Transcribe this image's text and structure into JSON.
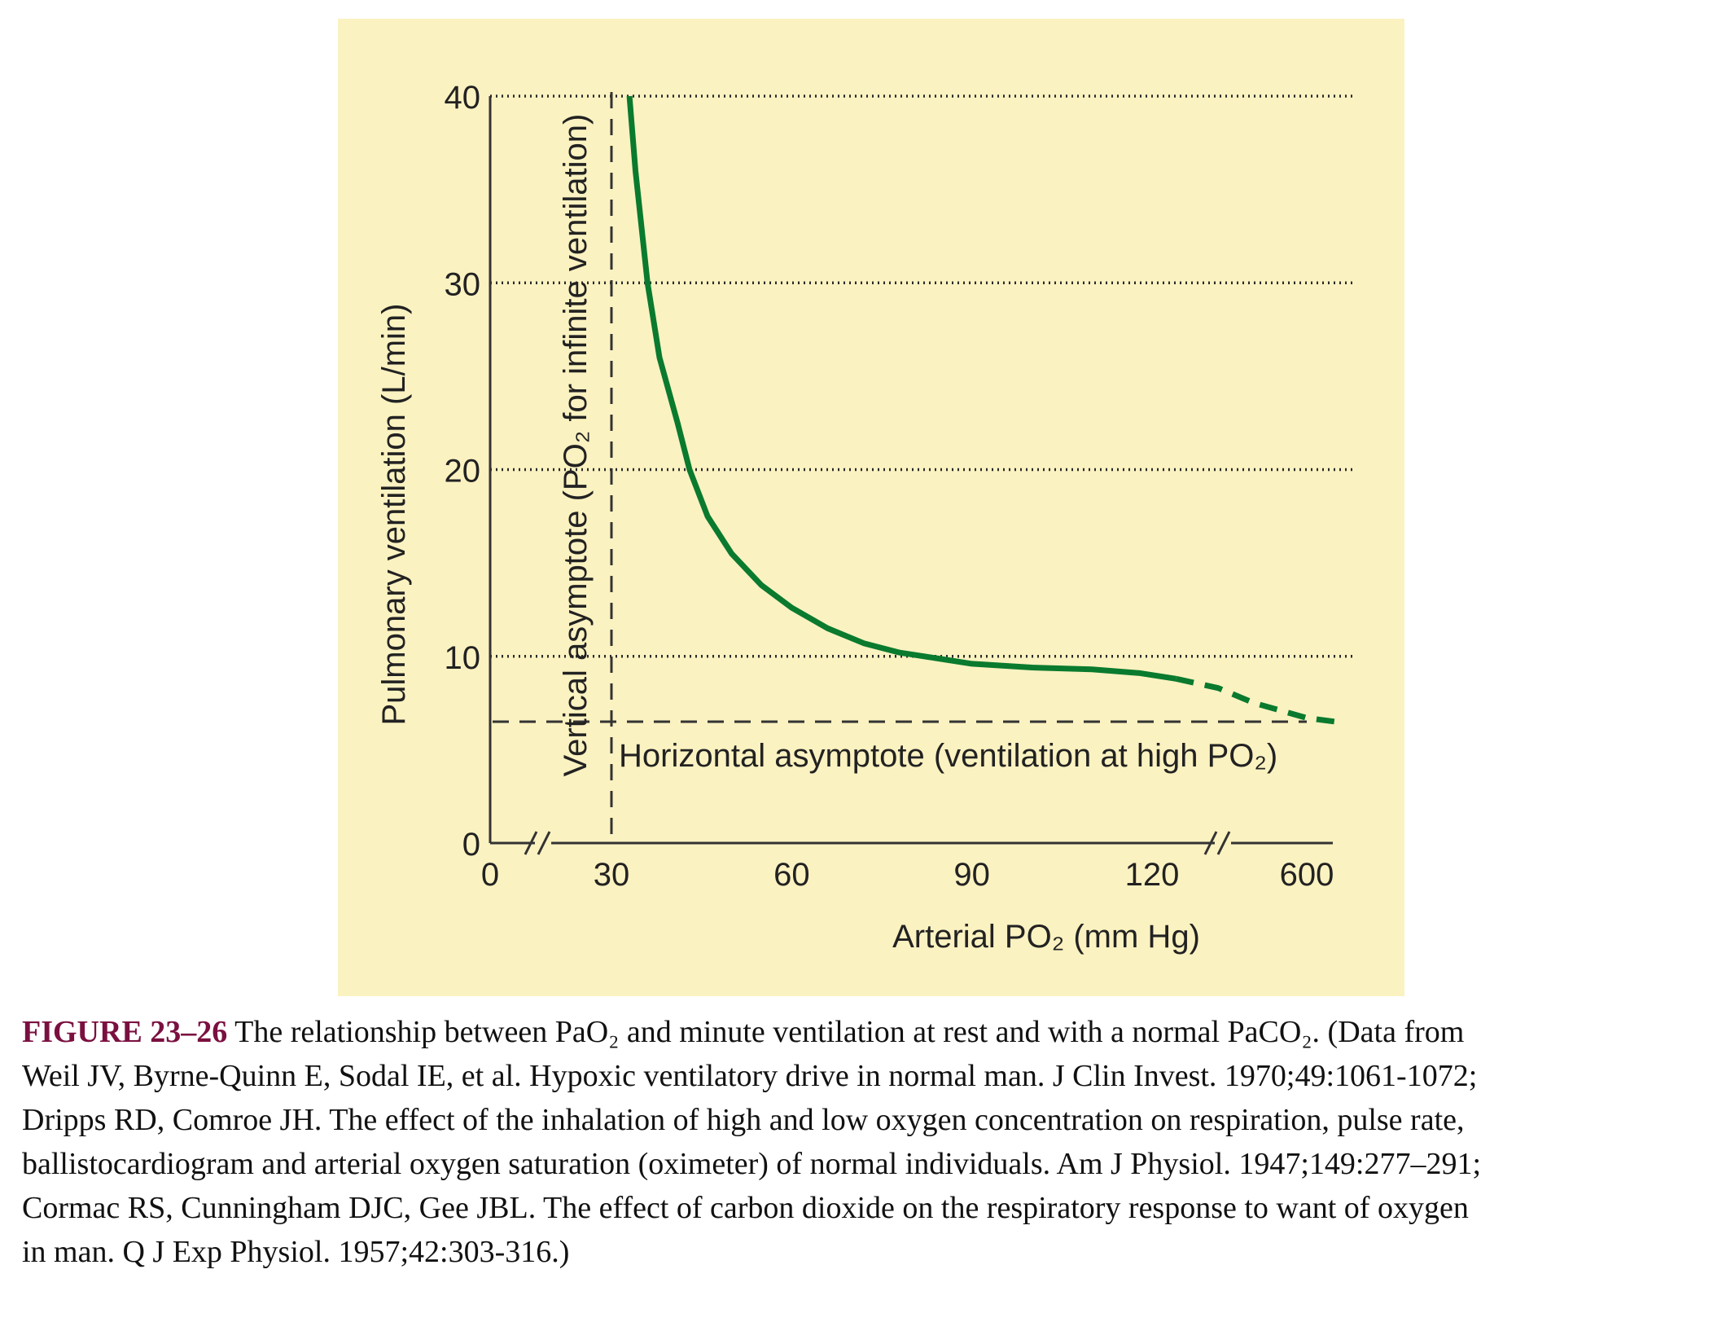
{
  "chart_data": {
    "type": "line",
    "xlabel": "Arterial PO₂ (mm Hg)",
    "ylabel": "Pulmonary ventilation (L/min)",
    "x_tick_labels": [
      "0",
      "30",
      "60",
      "90",
      "120",
      "600"
    ],
    "y_ticks": [
      0,
      10,
      20,
      30,
      40
    ],
    "y_tick_labels": [
      "0",
      "10",
      "20",
      "30",
      "40"
    ],
    "ylim": [
      0,
      40
    ],
    "x_axis_breaks": [
      "between 0 and 30",
      "between 120 and 600"
    ],
    "grid": "horizontal dotted at 10, 20, 30, 40",
    "series": [
      {
        "style": "solid",
        "color": "#0a7a2e",
        "points": [
          [
            33,
            40
          ],
          [
            34,
            36
          ],
          [
            36,
            30
          ],
          [
            38,
            26
          ],
          [
            41,
            22.5
          ],
          [
            43,
            20
          ],
          [
            46,
            17.5
          ],
          [
            50,
            15.5
          ],
          [
            55,
            13.8
          ],
          [
            60,
            12.6
          ],
          [
            66,
            11.5
          ],
          [
            72,
            10.7
          ],
          [
            78,
            10.2
          ],
          [
            84,
            9.9
          ],
          [
            90,
            9.6
          ],
          [
            100,
            9.4
          ],
          [
            110,
            9.3
          ],
          [
            118,
            9.1
          ],
          [
            124,
            8.8
          ]
        ]
      },
      {
        "style": "dashed",
        "color": "#0a7a2e",
        "points_note": "continuation beyond the axis break toward 600",
        "points": [
          [
            124,
            8.8
          ],
          [
            131,
            8.3
          ],
          [
            137,
            7.5
          ],
          [
            142,
            6.7
          ],
          [
            600,
            6.5
          ]
        ]
      }
    ],
    "vertical_asymptote": {
      "x": 30,
      "label": "Vertical asymptote (PO₂ for infinite ventilation)"
    },
    "horizontal_asymptote": {
      "y": 6.5,
      "label": "Horizontal asymptote (ventilation at high PO₂)"
    }
  },
  "caption": {
    "figure_label": "FIGURE 23–26",
    "lines": [
      " The relationship between PaO₂ and minute ventilation at rest and with a normal PaCO₂. (Data from",
      "Weil JV, Byrne-Quinn E, Sodal IE, et al. Hypoxic ventilatory drive in normal man. J Clin Invest. 1970;49:1061-1072;",
      "Dripps RD, Comroe JH. The effect of the inhalation of high and low oxygen concentration on respiration, pulse rate,",
      "ballistocardiogram and arterial oxygen saturation (oximeter) of normal individuals. Am J Physiol. 1947;149:277–291;",
      "Cormac RS, Cunningham DJC, Gee JBL. The effect of carbon dioxide on the respiratory response to want of oxygen",
      "in man. Q J Exp Physiol. 1957;42:303-316.)"
    ]
  },
  "colors": {
    "panel_background": "#fbf2c1",
    "curve": "#0a7a2e",
    "figure_label": "#7a1040"
  }
}
